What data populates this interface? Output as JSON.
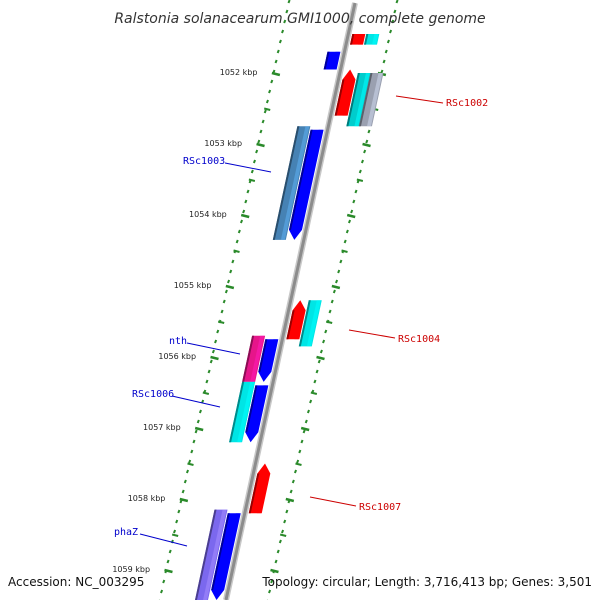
{
  "title": "Ralstonia solanacearum GMI1000, complete genome",
  "footer": {
    "accession": "Accession: NC_003295",
    "summary": "Topology: circular; Length: 3,716,413 bp; Genes: 3,501"
  },
  "colors": {
    "backbone": "#8c8c8c",
    "ticks": "#2a8a2a",
    "forward_label": "#0000cc",
    "reverse_label": "#cc0000"
  },
  "position_labels": [
    "1052 kbp",
    "1053 kbp",
    "1054 kbp",
    "1055 kbp",
    "1056 kbp",
    "1057 kbp",
    "1058 kbp",
    "1059 kbp"
  ],
  "gene_labels": [
    {
      "name": "RSc1002",
      "strand": "reverse"
    },
    {
      "name": "RSc1003",
      "strand": "forward"
    },
    {
      "name": "RSc1004",
      "strand": "reverse"
    },
    {
      "name": "nth",
      "strand": "forward"
    },
    {
      "name": "RSc1006",
      "strand": "forward"
    },
    {
      "name": "RSc1007",
      "strand": "reverse"
    },
    {
      "name": "phaZ",
      "strand": "forward"
    }
  ],
  "features": [
    {
      "strand": "reverse",
      "ring": 0,
      "start": 1051.45,
      "end": 1051.6,
      "color": "#ff0000",
      "arrow": "none"
    },
    {
      "strand": "reverse",
      "ring": 1,
      "start": 1051.45,
      "end": 1051.6,
      "color": "#00e5e5",
      "arrow": "none"
    },
    {
      "strand": "forward",
      "ring": 0,
      "start": 1051.7,
      "end": 1051.95,
      "color": "#0000ff",
      "arrow": "none"
    },
    {
      "strand": "reverse",
      "ring": 0,
      "start": 1051.95,
      "end": 1052.6,
      "color": "#ff0000",
      "arrow": "start"
    },
    {
      "strand": "reverse",
      "ring": 1,
      "start": 1052.0,
      "end": 1052.75,
      "color": "#00cccc",
      "arrow": "none"
    },
    {
      "strand": "reverse",
      "ring": 1.9,
      "start": 1052.0,
      "end": 1052.75,
      "color": "#9aa0b0",
      "arrow": "none"
    },
    {
      "strand": "forward",
      "ring": 1,
      "start": 1052.75,
      "end": 1054.35,
      "color": "#4682b4",
      "arrow": "none"
    },
    {
      "strand": "forward",
      "ring": 0,
      "start": 1052.8,
      "end": 1054.35,
      "color": "#0000ff",
      "arrow": "end"
    },
    {
      "strand": "reverse",
      "ring": 0,
      "start": 1055.2,
      "end": 1055.75,
      "color": "#ff0000",
      "arrow": "start"
    },
    {
      "strand": "reverse",
      "ring": 1,
      "start": 1055.2,
      "end": 1055.85,
      "color": "#00e5e5",
      "arrow": "none"
    },
    {
      "strand": "forward",
      "ring": 1,
      "start": 1055.7,
      "end": 1056.35,
      "color": "#e6158a",
      "arrow": "none"
    },
    {
      "strand": "forward",
      "ring": 0,
      "start": 1055.75,
      "end": 1056.35,
      "color": "#0000ff",
      "arrow": "end"
    },
    {
      "strand": "forward",
      "ring": 1,
      "start": 1056.35,
      "end": 1057.2,
      "color": "#00e5e5",
      "arrow": "none"
    },
    {
      "strand": "forward",
      "ring": 0,
      "start": 1056.4,
      "end": 1057.2,
      "color": "#0000ff",
      "arrow": "end"
    },
    {
      "strand": "reverse",
      "ring": 0,
      "start": 1057.5,
      "end": 1058.2,
      "color": "#ff0000",
      "arrow": "start"
    },
    {
      "strand": "forward",
      "ring": 1,
      "start": 1058.15,
      "end": 1059.5,
      "color": "#7b68ee",
      "arrow": "none"
    },
    {
      "strand": "forward",
      "ring": 0,
      "start": 1058.2,
      "end": 1059.5,
      "color": "#0000ff",
      "arrow": "end"
    }
  ]
}
